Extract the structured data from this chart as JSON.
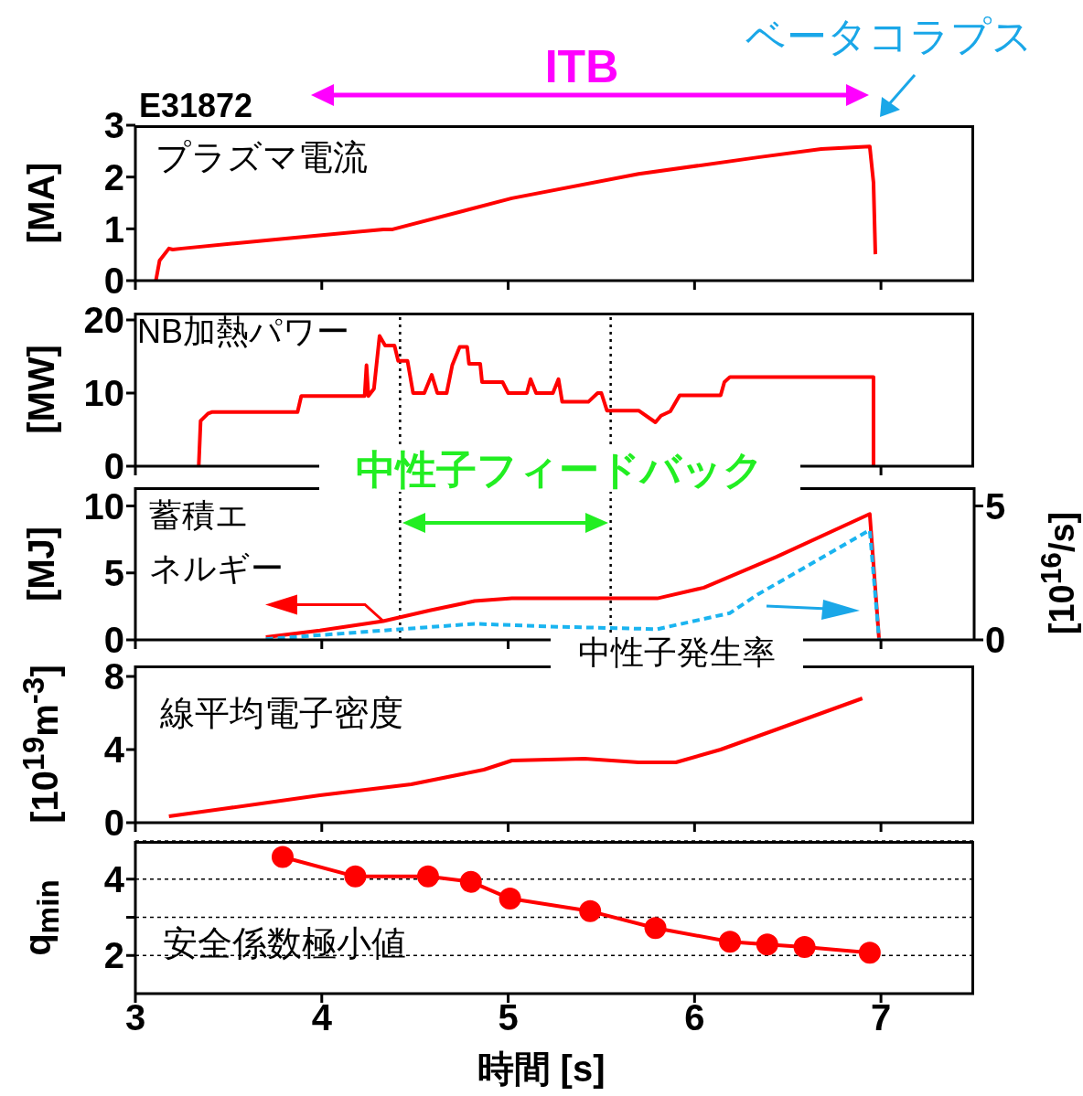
{
  "chart_data": [
    {
      "type": "line",
      "annotations": [
        "E31872",
        "ITB",
        "ベータコラプス",
        "プラズマ電流"
      ],
      "ylabel": "[MA]",
      "xlim": [
        3,
        7.5
      ],
      "xticks": [
        3,
        4,
        5,
        6,
        7
      ],
      "ylim": [
        0,
        3
      ],
      "yticks": [
        0,
        1,
        2,
        3
      ],
      "tick_labels": "y",
      "series": [
        {
          "color": "#ff0000",
          "x": [
            3.11,
            3.13,
            3.18,
            3.2,
            3.25,
            3.74,
            4.33,
            4.38,
            5.02,
            5.7,
            6.34,
            6.68,
            6.94,
            6.96,
            6.97
          ],
          "values": [
            0,
            0.39,
            0.62,
            0.6,
            0.62,
            0.79,
            0.99,
            0.99,
            1.59,
            2.06,
            2.38,
            2.54,
            2.59,
            1.89,
            0.51
          ]
        }
      ]
    },
    {
      "type": "line",
      "annotations": [
        "NB加熱パワー"
      ],
      "ylabel": "[MW]",
      "xlim": [
        3,
        7.5
      ],
      "xticks": [
        3,
        4,
        5,
        6,
        7
      ],
      "ylim": [
        0,
        21
      ],
      "yticks": [
        0,
        10,
        20
      ],
      "tick_labels": "y",
      "ref_lines": [
        {
          "axis": "x",
          "value": 4.42,
          "line_style": "dotted"
        },
        {
          "axis": "x",
          "value": 5.55,
          "line_style": "dotted"
        }
      ],
      "series": [
        {
          "color": "#ff0000",
          "x": [
            3.34,
            3.35,
            3.39,
            3.41,
            3.87,
            3.89,
            4.23,
            4.24,
            4.25,
            4.28,
            4.31,
            4.34,
            4.39,
            4.41,
            4.46,
            4.49,
            4.55,
            4.59,
            4.62,
            4.67,
            4.7,
            4.74,
            4.78,
            4.79,
            4.85,
            4.86,
            4.97,
            5.0,
            5.1,
            5.12,
            5.15,
            5.24,
            5.27,
            5.29,
            5.43,
            5.48,
            5.5,
            5.53,
            5.7,
            5.79,
            5.82,
            5.87,
            5.92,
            6.14,
            6.16,
            6.19,
            6.96,
            6.96
          ],
          "values": [
            0,
            6.2,
            7.2,
            7.4,
            7.4,
            9.6,
            9.6,
            13.8,
            9.6,
            10.6,
            17.8,
            16.5,
            16.5,
            14.4,
            14.4,
            10,
            10,
            12.5,
            10,
            10,
            13.8,
            16.3,
            16.3,
            14,
            14,
            11.5,
            11.5,
            10,
            10,
            11.9,
            10,
            10,
            11.9,
            8.8,
            8.8,
            10,
            10,
            7.6,
            7.6,
            6,
            6.9,
            7.5,
            9.7,
            9.7,
            11.5,
            12.2,
            12.2,
            0
          ]
        }
      ]
    },
    {
      "type": "line",
      "annotations": [
        {
          "text": "蓄積エネルギー",
          "x": 4.33,
          "y": 1.4
        },
        "中性子フィードバック",
        "中性子発生率"
      ],
      "ylabel": "[MJ]",
      "y2label": "[10$^{16}$/s]",
      "xlim": [
        3,
        7.5
      ],
      "xticks": [
        3,
        4,
        5,
        6,
        7
      ],
      "ylim": [
        0,
        11.4
      ],
      "yticks": [
        0,
        5,
        10
      ],
      "y2lim": [
        0,
        5.7
      ],
      "y2ticks": [
        0,
        5
      ],
      "tick_labels": "y",
      "ref_lines": [
        {
          "axis": "x",
          "value": 4.42,
          "line_style": "dotted"
        },
        {
          "axis": "x",
          "value": 5.55,
          "line_style": "dotted"
        }
      ],
      "series": [
        {
          "color": "#ff0000",
          "x": [
            3.7,
            3.99,
            4.33,
            4.58,
            4.82,
            5.02,
            5.57,
            5.8,
            6.05,
            6.44,
            6.94,
            6.99
          ],
          "values": [
            0.2,
            0.7,
            1.4,
            2.2,
            2.9,
            3.1,
            3.1,
            3.1,
            3.9,
            6.2,
            9.4,
            0
          ]
        },
        {
          "color": "#1ab4f0",
          "axis": "y2",
          "line_style": "dashed",
          "x": [
            3.7,
            4.43,
            4.82,
            5.21,
            5.8,
            6.19,
            6.34,
            6.94,
            6.99
          ],
          "values": [
            0.03,
            0.4,
            0.6,
            0.5,
            0.4,
            1.0,
            1.7,
            4.1,
            0
          ]
        }
      ]
    },
    {
      "type": "line",
      "annotations": [
        "線平均電子密度"
      ],
      "ylabel": "[10$^{19}$m$^{-3}$]",
      "xlim": [
        3,
        7.5
      ],
      "xticks": [
        3,
        4,
        5,
        6,
        7
      ],
      "ylim": [
        0,
        8.6
      ],
      "yticks": [
        0,
        4,
        8
      ],
      "tick_labels": "y",
      "series": [
        {
          "color": "#ff0000",
          "x": [
            3.18,
            3.5,
            3.99,
            4.48,
            4.87,
            5.02,
            5.41,
            5.7,
            5.9,
            6.14,
            6.44,
            6.9
          ],
          "values": [
            0.35,
            0.8,
            1.5,
            2.1,
            2.9,
            3.4,
            3.5,
            3.3,
            3.3,
            4.0,
            5.1,
            6.8
          ]
        }
      ]
    },
    {
      "type": "line",
      "annotations": [
        "安全係数極小値"
      ],
      "ylabel": "q$_{min}$",
      "xlabel": "時間 [s]",
      "xlim": [
        3,
        7.5
      ],
      "xticks": [
        3,
        4,
        5,
        6,
        7
      ],
      "ylim": [
        1,
        5
      ],
      "yticks": [
        2,
        {
          "value": 3,
          "label": null
        },
        4
      ],
      "grid": "y",
      "marker": "circle",
      "series": [
        {
          "color": "#ff0000",
          "x": [
            3.79,
            4.18,
            4.57,
            4.8,
            5.01,
            5.44,
            5.79,
            6.19,
            6.39,
            6.59,
            6.94
          ],
          "values": [
            4.58,
            4.07,
            4.07,
            3.93,
            3.49,
            3.16,
            2.72,
            2.36,
            2.29,
            2.22,
            2.07
          ]
        }
      ]
    }
  ]
}
